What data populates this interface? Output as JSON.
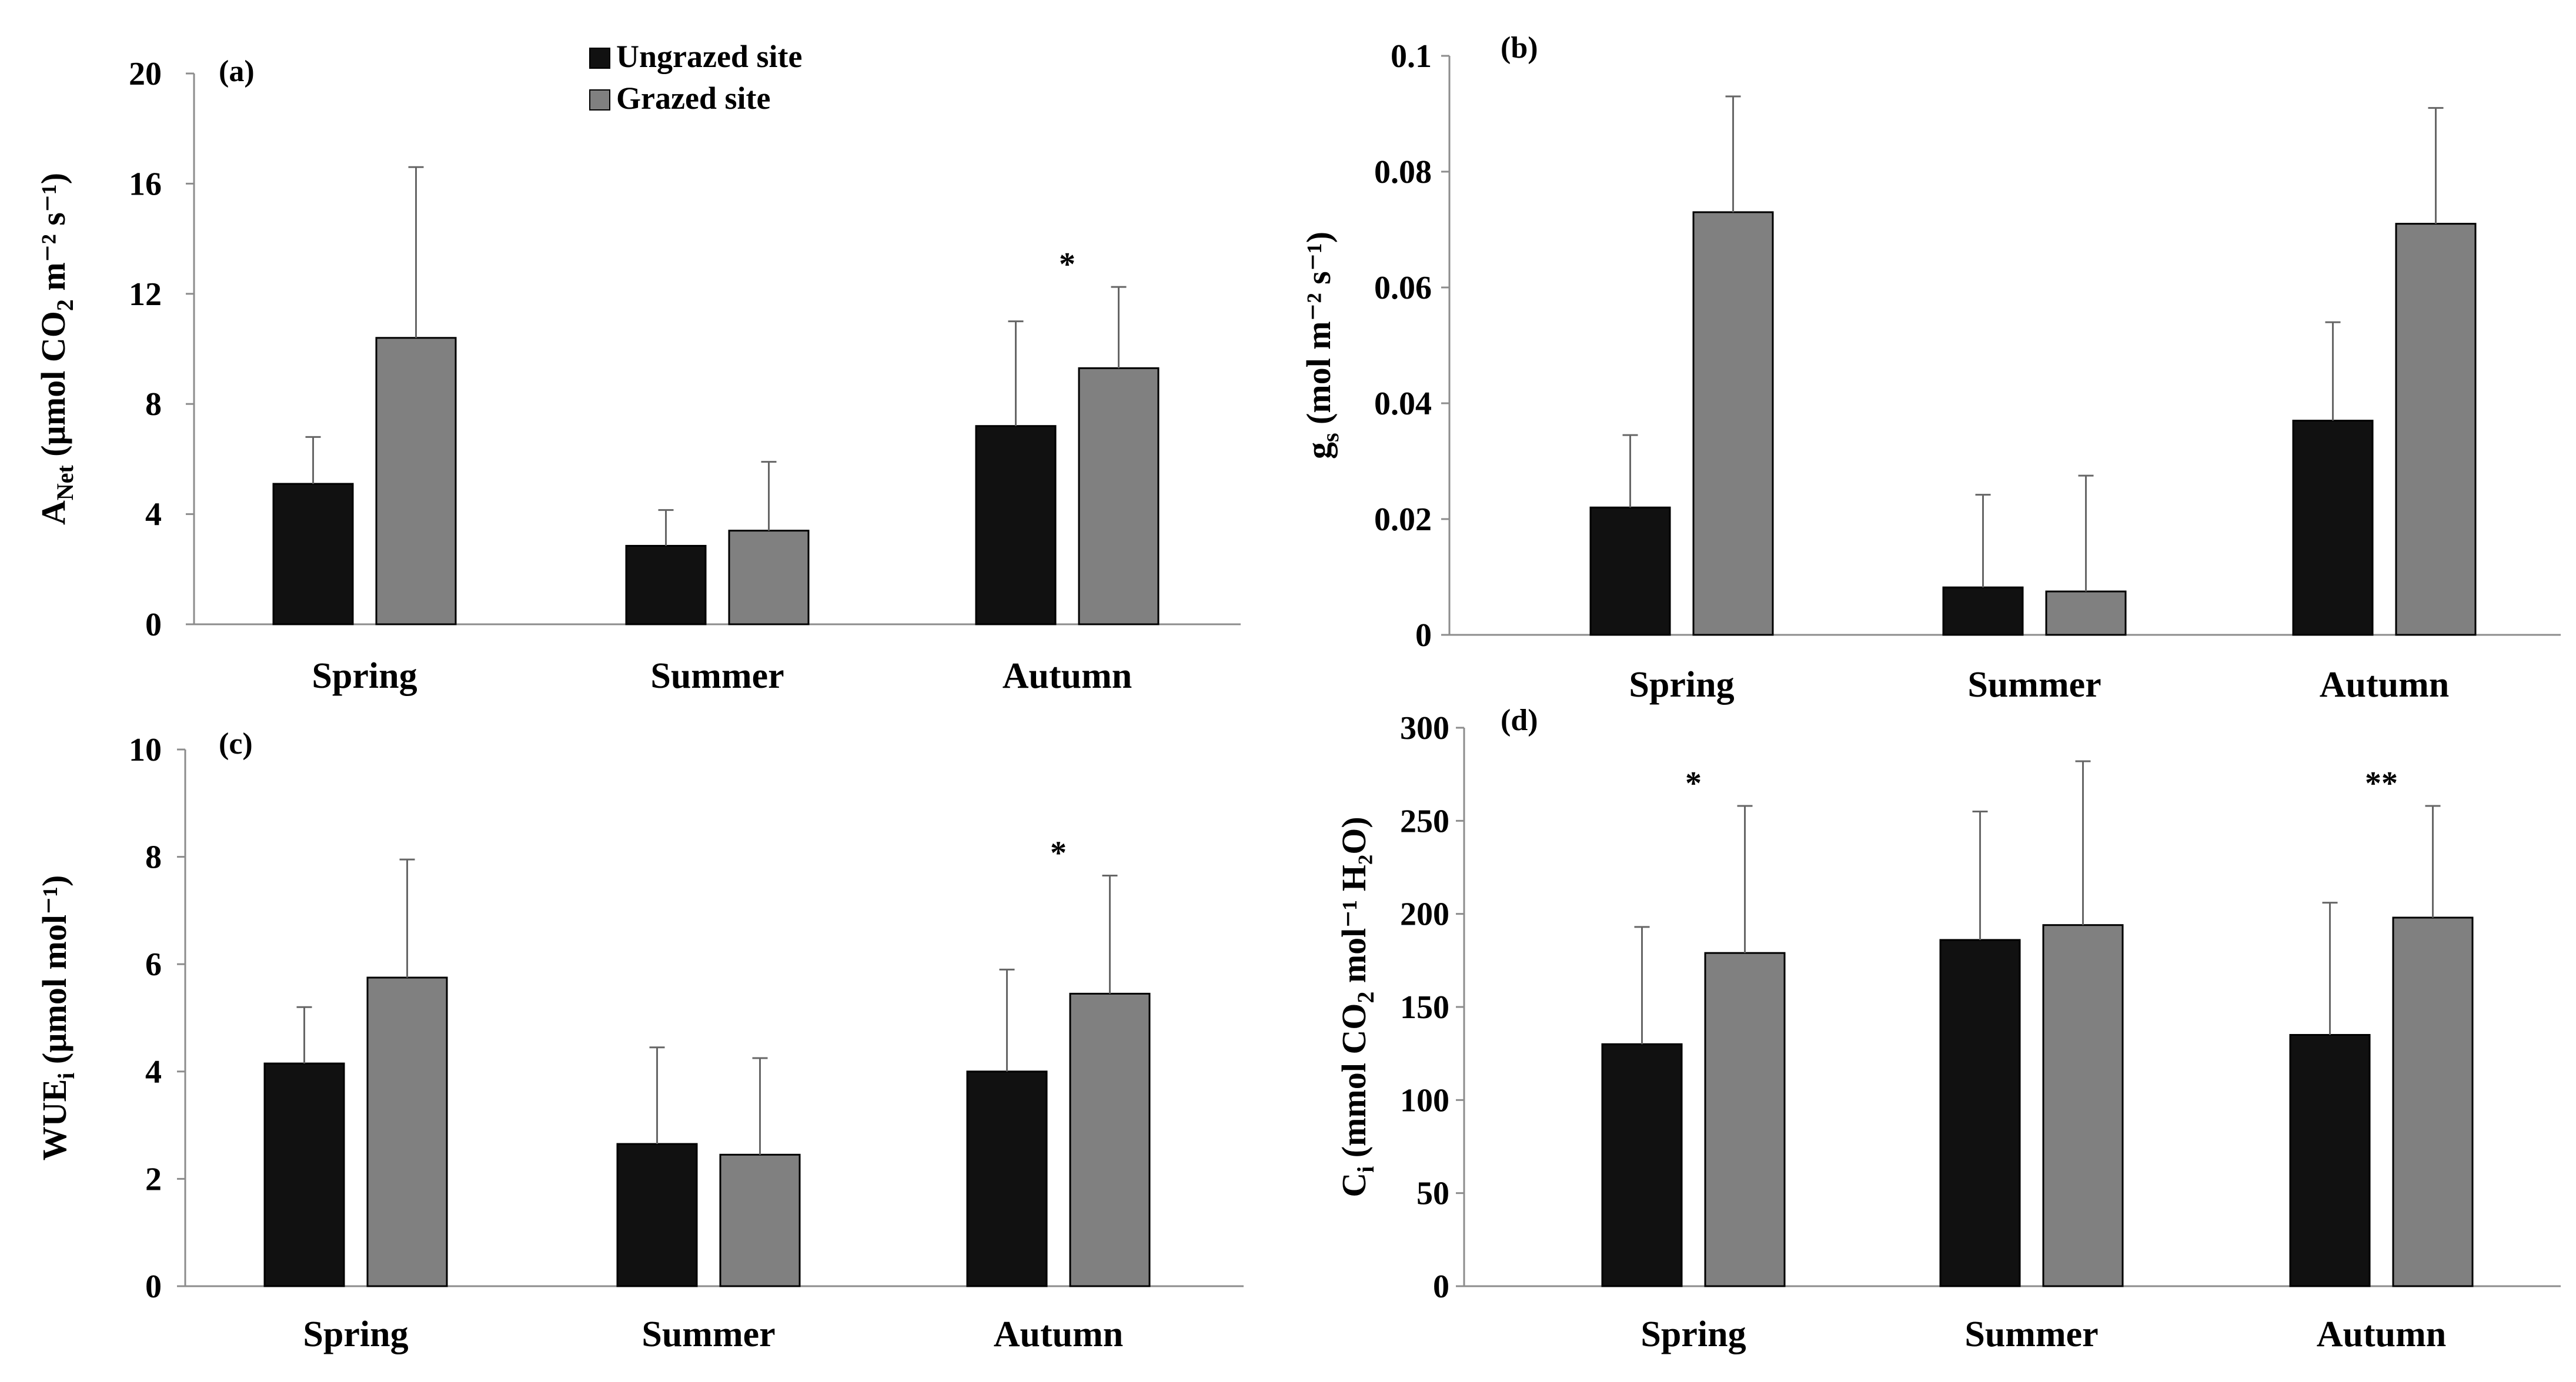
{
  "figure": {
    "legend": {
      "items": [
        {
          "label": "Ungrazed site",
          "color": "#111111"
        },
        {
          "label": "Grazed site",
          "color": "#808080"
        }
      ]
    }
  },
  "colors": {
    "ungrazed": "#111111",
    "grazed": "#808080",
    "axis": "#8c8c8c",
    "errorbar": "#666666"
  },
  "chart_data": [
    {
      "panel": "(a)",
      "type": "bar",
      "categories": [
        "Spring",
        "Summer",
        "Autumn"
      ],
      "series": [
        {
          "name": "Ungrazed site",
          "values": [
            5.1,
            2.85,
            7.2
          ],
          "errors": [
            1.7,
            1.3,
            3.8
          ]
        },
        {
          "name": "Grazed site",
          "values": [
            10.4,
            3.4,
            9.3
          ],
          "errors": [
            6.2,
            2.5,
            2.95
          ]
        }
      ],
      "ylim": [
        0,
        20
      ],
      "yticks": [
        "0",
        "4",
        "8",
        "12",
        "16",
        "20"
      ],
      "ylabel": {
        "main": "A",
        "sub": "Net",
        "rest": " (µmol CO",
        "sub2": "2",
        "tail": " m⁻² s⁻¹)"
      },
      "annotations": [
        {
          "category": "Autumn",
          "text": "*"
        }
      ]
    },
    {
      "panel": "(b)",
      "type": "bar",
      "categories": [
        "Spring",
        "Summer",
        "Autumn"
      ],
      "series": [
        {
          "name": "Ungrazed site",
          "values": [
            0.022,
            0.0082,
            0.037
          ],
          "errors": [
            0.0125,
            0.016,
            0.017
          ]
        },
        {
          "name": "Grazed site",
          "values": [
            0.073,
            0.0075,
            0.071
          ],
          "errors": [
            0.02,
            0.02,
            0.02
          ]
        }
      ],
      "ylim": [
        0,
        0.1
      ],
      "yticks": [
        "0",
        "0.02",
        "0.04",
        "0.06",
        "0.08",
        "0.1"
      ],
      "ylabel": {
        "main": "g",
        "sub": "s",
        "rest": " (mol m⁻² s⁻¹)",
        "sub2": "",
        "tail": ""
      },
      "annotations": []
    },
    {
      "panel": "(c)",
      "type": "bar",
      "categories": [
        "Spring",
        "Summer",
        "Autumn"
      ],
      "series": [
        {
          "name": "Ungrazed site",
          "values": [
            4.15,
            2.65,
            4.0
          ],
          "errors": [
            1.05,
            1.8,
            1.9
          ]
        },
        {
          "name": "Grazed site",
          "values": [
            5.75,
            2.45,
            5.45
          ],
          "errors": [
            2.2,
            1.8,
            2.2
          ]
        }
      ],
      "ylim": [
        0,
        10
      ],
      "yticks": [
        "0",
        "2",
        "4",
        "6",
        "8",
        "10"
      ],
      "ylabel": {
        "main": "WUE",
        "sub": "i",
        "rest": " (µmol mol⁻¹)",
        "sub2": "",
        "tail": ""
      },
      "annotations": [
        {
          "category": "Autumn",
          "text": "*"
        }
      ]
    },
    {
      "panel": "(d)",
      "type": "bar",
      "categories": [
        "Spring",
        "Summer",
        "Autumn"
      ],
      "series": [
        {
          "name": "Ungrazed site",
          "values": [
            130,
            186,
            135
          ],
          "errors": [
            63,
            69,
            71
          ]
        },
        {
          "name": "Grazed site",
          "values": [
            179,
            194,
            198
          ],
          "errors": [
            79,
            88,
            60
          ]
        }
      ],
      "ylim": [
        0,
        300
      ],
      "yticks": [
        "0",
        "50",
        "100",
        "150",
        "200",
        "250",
        "300"
      ],
      "ylabel": {
        "main": "C",
        "sub": "i",
        "rest": " (mmol CO",
        "sub2": "2",
        "tail": " mol⁻¹ H₂O)"
      },
      "annotations": [
        {
          "category": "Spring",
          "text": "*"
        },
        {
          "category": "Autumn",
          "text": "**"
        }
      ]
    }
  ]
}
